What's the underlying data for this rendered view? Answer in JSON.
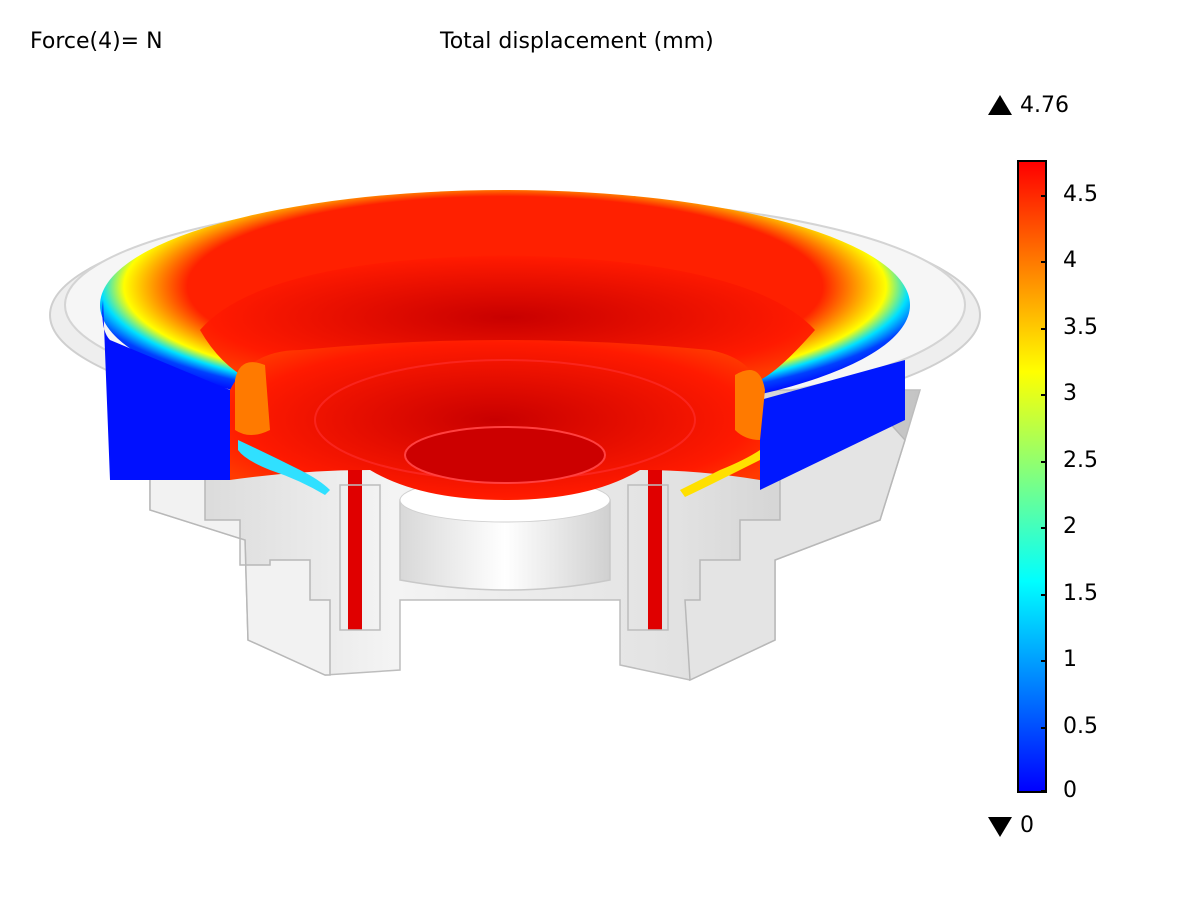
{
  "header": {
    "parameter_label": "Force(4)= N",
    "plot_title": "Total displacement (mm)"
  },
  "colorbar": {
    "max_label": "4.76",
    "min_label": "0",
    "range": [
      0,
      4.76
    ],
    "colormap": "rainbow",
    "colors": [
      "#0000ff",
      "#0080ff",
      "#00ffff",
      "#80ff80",
      "#ffff00",
      "#ff8000",
      "#ff0000"
    ],
    "ticks": [
      {
        "value": 4.5,
        "label": "4.5"
      },
      {
        "value": 4,
        "label": "4"
      },
      {
        "value": 3.5,
        "label": "3.5"
      },
      {
        "value": 3,
        "label": "3"
      },
      {
        "value": 2.5,
        "label": "2.5"
      },
      {
        "value": 2,
        "label": "2"
      },
      {
        "value": 1.5,
        "label": "1.5"
      },
      {
        "value": 1,
        "label": "1"
      },
      {
        "value": 0.5,
        "label": "0.5"
      },
      {
        "value": 0,
        "label": "0"
      }
    ]
  },
  "model": {
    "name": "loudspeaker-cutaway",
    "housing_color": "#e6e6e6",
    "cone_color": "#e00000",
    "surround_color": "#0010ff"
  }
}
